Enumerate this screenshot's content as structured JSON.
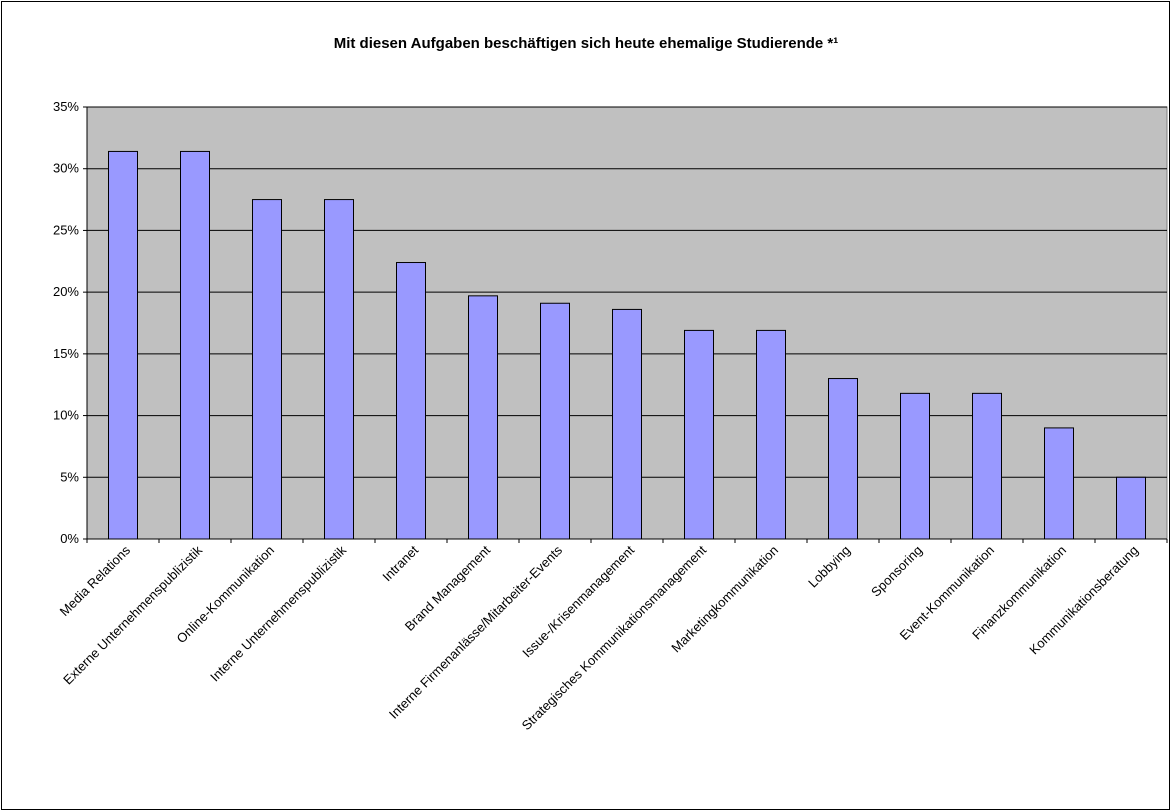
{
  "chart_data": {
    "type": "bar",
    "title": "Mit diesen Aufgaben beschäftigen sich heute ehemalige Studierende *¹",
    "categories": [
      "Media Relations",
      "Externe Unternehmenspublizistik",
      "Online-Kommunikation",
      "Interne Unternehmenspublizistik",
      "Intranet",
      "Brand Management",
      "Interne Firmenanlässe/Mitarbeiter-Events",
      "Issue-/Krisenmanagement",
      "Strategisches Kommunikationsmanagement",
      "Marketingkommunikation",
      "Lobbying",
      "Sponsoring",
      "Event-Kommunikation",
      "Finanzkommunikation",
      "Kommunikationsberatung"
    ],
    "values": [
      31.4,
      31.4,
      27.5,
      27.5,
      22.4,
      19.7,
      19.1,
      18.6,
      16.9,
      16.9,
      13.0,
      11.8,
      11.8,
      9.0,
      5.0
    ],
    "color": "#9999ff",
    "ylim": [
      0,
      35
    ],
    "yticks": [
      {
        "value": 0,
        "label": "0%"
      },
      {
        "value": 5,
        "label": "5%"
      },
      {
        "value": 10,
        "label": "10%"
      },
      {
        "value": 15,
        "label": "15%"
      },
      {
        "value": 20,
        "label": "20%"
      },
      {
        "value": 25,
        "label": "25%"
      },
      {
        "value": 30,
        "label": "30%"
      },
      {
        "value": 35,
        "label": "35%"
      }
    ],
    "grid": true
  }
}
